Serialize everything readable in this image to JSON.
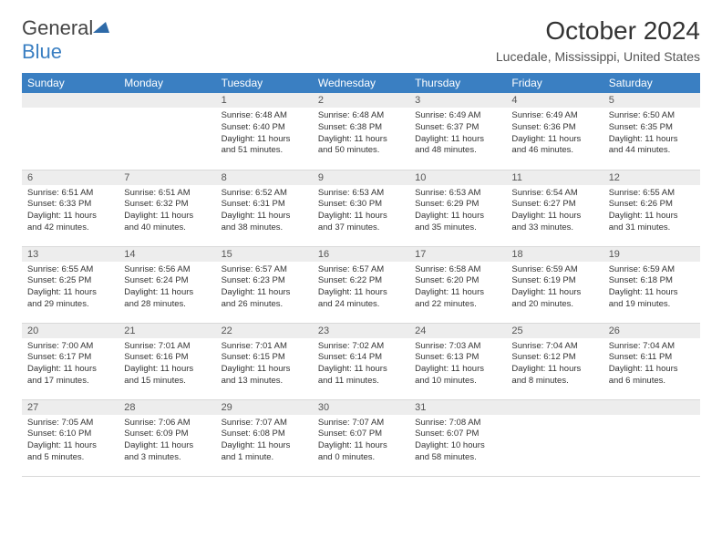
{
  "logo": {
    "text1": "General",
    "text2": "Blue"
  },
  "title": "October 2024",
  "location": "Lucedale, Mississippi, United States",
  "colors": {
    "header_bg": "#3a7fc2",
    "daynum_bg": "#ededed",
    "border": "#d9d9d9",
    "text": "#333333"
  },
  "weekdays": [
    "Sunday",
    "Monday",
    "Tuesday",
    "Wednesday",
    "Thursday",
    "Friday",
    "Saturday"
  ],
  "weeks": [
    [
      {
        "n": "",
        "r": "",
        "s": "",
        "d": ""
      },
      {
        "n": "",
        "r": "",
        "s": "",
        "d": ""
      },
      {
        "n": "1",
        "r": "Sunrise: 6:48 AM",
        "s": "Sunset: 6:40 PM",
        "d": "Daylight: 11 hours and 51 minutes."
      },
      {
        "n": "2",
        "r": "Sunrise: 6:48 AM",
        "s": "Sunset: 6:38 PM",
        "d": "Daylight: 11 hours and 50 minutes."
      },
      {
        "n": "3",
        "r": "Sunrise: 6:49 AM",
        "s": "Sunset: 6:37 PM",
        "d": "Daylight: 11 hours and 48 minutes."
      },
      {
        "n": "4",
        "r": "Sunrise: 6:49 AM",
        "s": "Sunset: 6:36 PM",
        "d": "Daylight: 11 hours and 46 minutes."
      },
      {
        "n": "5",
        "r": "Sunrise: 6:50 AM",
        "s": "Sunset: 6:35 PM",
        "d": "Daylight: 11 hours and 44 minutes."
      }
    ],
    [
      {
        "n": "6",
        "r": "Sunrise: 6:51 AM",
        "s": "Sunset: 6:33 PM",
        "d": "Daylight: 11 hours and 42 minutes."
      },
      {
        "n": "7",
        "r": "Sunrise: 6:51 AM",
        "s": "Sunset: 6:32 PM",
        "d": "Daylight: 11 hours and 40 minutes."
      },
      {
        "n": "8",
        "r": "Sunrise: 6:52 AM",
        "s": "Sunset: 6:31 PM",
        "d": "Daylight: 11 hours and 38 minutes."
      },
      {
        "n": "9",
        "r": "Sunrise: 6:53 AM",
        "s": "Sunset: 6:30 PM",
        "d": "Daylight: 11 hours and 37 minutes."
      },
      {
        "n": "10",
        "r": "Sunrise: 6:53 AM",
        "s": "Sunset: 6:29 PM",
        "d": "Daylight: 11 hours and 35 minutes."
      },
      {
        "n": "11",
        "r": "Sunrise: 6:54 AM",
        "s": "Sunset: 6:27 PM",
        "d": "Daylight: 11 hours and 33 minutes."
      },
      {
        "n": "12",
        "r": "Sunrise: 6:55 AM",
        "s": "Sunset: 6:26 PM",
        "d": "Daylight: 11 hours and 31 minutes."
      }
    ],
    [
      {
        "n": "13",
        "r": "Sunrise: 6:55 AM",
        "s": "Sunset: 6:25 PM",
        "d": "Daylight: 11 hours and 29 minutes."
      },
      {
        "n": "14",
        "r": "Sunrise: 6:56 AM",
        "s": "Sunset: 6:24 PM",
        "d": "Daylight: 11 hours and 28 minutes."
      },
      {
        "n": "15",
        "r": "Sunrise: 6:57 AM",
        "s": "Sunset: 6:23 PM",
        "d": "Daylight: 11 hours and 26 minutes."
      },
      {
        "n": "16",
        "r": "Sunrise: 6:57 AM",
        "s": "Sunset: 6:22 PM",
        "d": "Daylight: 11 hours and 24 minutes."
      },
      {
        "n": "17",
        "r": "Sunrise: 6:58 AM",
        "s": "Sunset: 6:20 PM",
        "d": "Daylight: 11 hours and 22 minutes."
      },
      {
        "n": "18",
        "r": "Sunrise: 6:59 AM",
        "s": "Sunset: 6:19 PM",
        "d": "Daylight: 11 hours and 20 minutes."
      },
      {
        "n": "19",
        "r": "Sunrise: 6:59 AM",
        "s": "Sunset: 6:18 PM",
        "d": "Daylight: 11 hours and 19 minutes."
      }
    ],
    [
      {
        "n": "20",
        "r": "Sunrise: 7:00 AM",
        "s": "Sunset: 6:17 PM",
        "d": "Daylight: 11 hours and 17 minutes."
      },
      {
        "n": "21",
        "r": "Sunrise: 7:01 AM",
        "s": "Sunset: 6:16 PM",
        "d": "Daylight: 11 hours and 15 minutes."
      },
      {
        "n": "22",
        "r": "Sunrise: 7:01 AM",
        "s": "Sunset: 6:15 PM",
        "d": "Daylight: 11 hours and 13 minutes."
      },
      {
        "n": "23",
        "r": "Sunrise: 7:02 AM",
        "s": "Sunset: 6:14 PM",
        "d": "Daylight: 11 hours and 11 minutes."
      },
      {
        "n": "24",
        "r": "Sunrise: 7:03 AM",
        "s": "Sunset: 6:13 PM",
        "d": "Daylight: 11 hours and 10 minutes."
      },
      {
        "n": "25",
        "r": "Sunrise: 7:04 AM",
        "s": "Sunset: 6:12 PM",
        "d": "Daylight: 11 hours and 8 minutes."
      },
      {
        "n": "26",
        "r": "Sunrise: 7:04 AM",
        "s": "Sunset: 6:11 PM",
        "d": "Daylight: 11 hours and 6 minutes."
      }
    ],
    [
      {
        "n": "27",
        "r": "Sunrise: 7:05 AM",
        "s": "Sunset: 6:10 PM",
        "d": "Daylight: 11 hours and 5 minutes."
      },
      {
        "n": "28",
        "r": "Sunrise: 7:06 AM",
        "s": "Sunset: 6:09 PM",
        "d": "Daylight: 11 hours and 3 minutes."
      },
      {
        "n": "29",
        "r": "Sunrise: 7:07 AM",
        "s": "Sunset: 6:08 PM",
        "d": "Daylight: 11 hours and 1 minute."
      },
      {
        "n": "30",
        "r": "Sunrise: 7:07 AM",
        "s": "Sunset: 6:07 PM",
        "d": "Daylight: 11 hours and 0 minutes."
      },
      {
        "n": "31",
        "r": "Sunrise: 7:08 AM",
        "s": "Sunset: 6:07 PM",
        "d": "Daylight: 10 hours and 58 minutes."
      },
      {
        "n": "",
        "r": "",
        "s": "",
        "d": ""
      },
      {
        "n": "",
        "r": "",
        "s": "",
        "d": ""
      }
    ]
  ]
}
